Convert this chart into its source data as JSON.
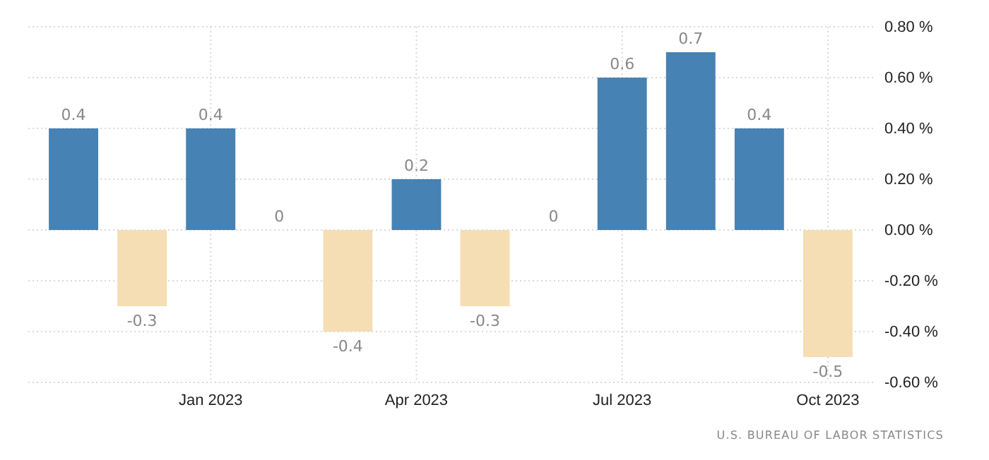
{
  "chart_data": {
    "type": "bar",
    "categories": [
      null,
      null,
      "Jan 2023",
      null,
      null,
      "Apr 2023",
      null,
      null,
      "Jul 2023",
      null,
      null,
      "Oct 2023"
    ],
    "values": [
      0.4,
      -0.3,
      0.4,
      0,
      -0.4,
      0.2,
      -0.3,
      0,
      0.6,
      0.7,
      0.4,
      -0.5
    ],
    "colors": [
      "#4682b4",
      "#f5deb3",
      "#4682b4",
      "#4682b4",
      "#f5deb3",
      "#4682b4",
      "#f5deb3",
      "#4682b4",
      "#4682b4",
      "#4682b4",
      "#4682b4",
      "#f5deb3"
    ],
    "ylim": [
      -0.6,
      0.8
    ],
    "yticks": [
      {
        "value": -0.6,
        "label": "-0.60 %"
      },
      {
        "value": -0.4,
        "label": "-0.40 %"
      },
      {
        "value": -0.2,
        "label": "-0.20 %"
      },
      {
        "value": 0,
        "label": "0.00 %"
      },
      {
        "value": 0.2,
        "label": "0.20 %"
      },
      {
        "value": 0.4,
        "label": "0.40 %"
      },
      {
        "value": 0.6,
        "label": "0.60 %"
      },
      {
        "value": 0.8,
        "label": "0.80 %"
      }
    ],
    "grid": true,
    "data_labels": true,
    "annotations": [
      "U.S. BUREAU OF LABOR STATISTICS"
    ]
  }
}
